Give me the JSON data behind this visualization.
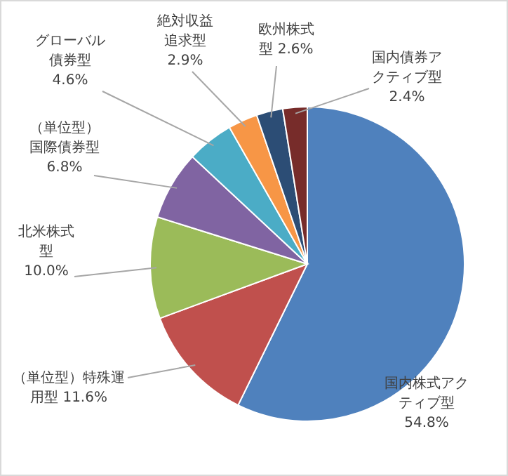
{
  "chart_data": {
    "type": "pie",
    "categories": [
      "国内株式アクティブ型",
      "（単位型）特殊運用型",
      "北米株式型",
      "（単位型）国際債券型",
      "グローバル債券型",
      "絶対収益追求型",
      "欧州株式型",
      "国内債券アクティブ型"
    ],
    "values": [
      54.8,
      11.6,
      10.0,
      6.8,
      4.6,
      2.9,
      2.6,
      2.4
    ],
    "colors": [
      "#4f81bd",
      "#c0504d",
      "#9bbb59",
      "#8064a2",
      "#4bacc6",
      "#f79646",
      "#2c4d75",
      "#772c2a"
    ],
    "value_labels": [
      "54.8%",
      "11.6%",
      "10.0%",
      "6.8%",
      "4.6%",
      "2.9%",
      "2.6%",
      "2.4%"
    ]
  }
}
